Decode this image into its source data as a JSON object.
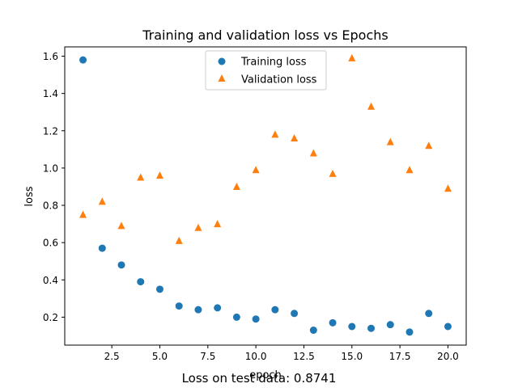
{
  "chart_data": {
    "type": "scatter",
    "title": "Training and validation loss vs Epochs",
    "xlabel": "epoch",
    "ylabel": "loss",
    "xlim": [
      0.05,
      20.95
    ],
    "ylim": [
      0.05,
      1.65
    ],
    "xticks": [
      2.5,
      5.0,
      7.5,
      10.0,
      12.5,
      15.0,
      17.5,
      20.0
    ],
    "xtick_labels": [
      "2.5",
      "5.0",
      "7.5",
      "10.0",
      "12.5",
      "15.0",
      "17.5",
      "20.0"
    ],
    "yticks": [
      0.2,
      0.4,
      0.6,
      0.8,
      1.0,
      1.2,
      1.4,
      1.6
    ],
    "ytick_labels": [
      "0.2",
      "0.4",
      "0.6",
      "0.8",
      "1.0",
      "1.2",
      "1.4",
      "1.6"
    ],
    "grid": false,
    "legend_position": "top-center",
    "series": [
      {
        "name": "Training loss",
        "marker": "circle",
        "color": "#1f77b4",
        "x": [
          1,
          2,
          3,
          4,
          5,
          6,
          7,
          8,
          9,
          10,
          11,
          12,
          13,
          14,
          15,
          16,
          17,
          18,
          19,
          20
        ],
        "y": [
          1.58,
          0.57,
          0.48,
          0.39,
          0.35,
          0.26,
          0.24,
          0.25,
          0.2,
          0.19,
          0.24,
          0.22,
          0.13,
          0.17,
          0.15,
          0.14,
          0.16,
          0.12,
          0.22,
          0.15
        ]
      },
      {
        "name": "Validation loss",
        "marker": "triangle",
        "color": "#ff7f0e",
        "x": [
          1,
          2,
          3,
          4,
          5,
          6,
          7,
          8,
          9,
          10,
          11,
          12,
          13,
          14,
          15,
          16,
          17,
          18,
          19,
          20
        ],
        "y": [
          0.75,
          0.82,
          0.69,
          0.95,
          0.96,
          0.61,
          0.68,
          0.7,
          0.9,
          0.99,
          1.18,
          1.16,
          1.08,
          0.97,
          1.59,
          1.33,
          1.14,
          0.99,
          1.12,
          0.89
        ]
      }
    ]
  },
  "caption": "Loss on test data: 0.8741"
}
